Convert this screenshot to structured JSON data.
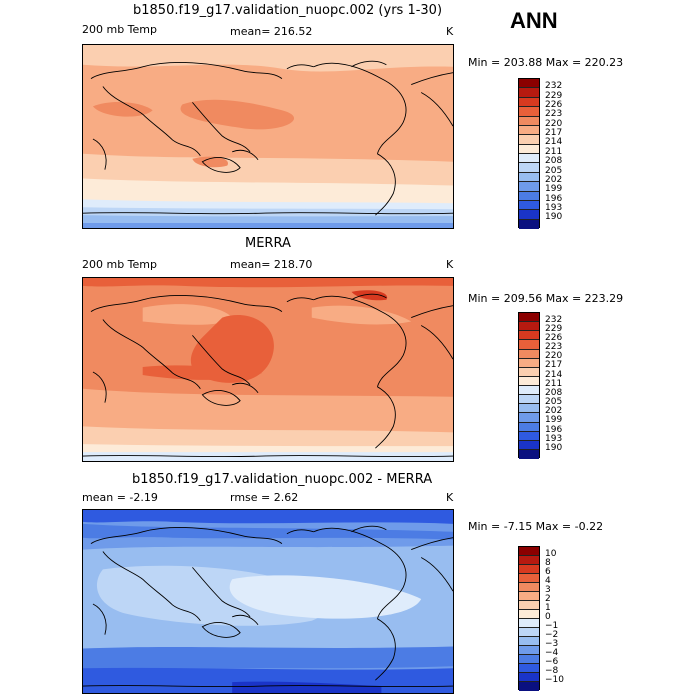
{
  "season": "ANN",
  "panels": [
    {
      "title": "b1850.f19_g17.validation_nuopc.002 (yrs 1-30)",
      "left_label": "200 mb Temp",
      "center_label": "mean= 216.52",
      "right_label": "K",
      "minmax": "Min = 203.88 Max = 220.23",
      "colorbar_labels": [
        "232",
        "229",
        "226",
        "223",
        "220",
        "217",
        "214",
        "211",
        "208",
        "205",
        "202",
        "199",
        "196",
        "193",
        "190"
      ]
    },
    {
      "title": "MERRA",
      "left_label": "200 mb Temp",
      "center_label": "mean= 218.70",
      "right_label": "K",
      "minmax": "Min = 209.56 Max = 223.29",
      "colorbar_labels": [
        "232",
        "229",
        "226",
        "223",
        "220",
        "217",
        "214",
        "211",
        "208",
        "205",
        "202",
        "199",
        "196",
        "193",
        "190"
      ]
    },
    {
      "title": "b1850.f19_g17.validation_nuopc.002 - MERRA",
      "left_label": "mean =   -2.19",
      "center_label": "rmse =    2.62",
      "right_label": "K",
      "minmax": "Min =  -7.15 Max =  -0.22",
      "colorbar_labels": [
        "10",
        "8",
        "6",
        "4",
        "3",
        "2",
        "1",
        "0",
        "−1",
        "−2",
        "−3",
        "−4",
        "−6",
        "−8",
        "−10"
      ]
    }
  ],
  "colors": {
    "scale16": [
      "#8b0000",
      "#b61a10",
      "#d73a20",
      "#e8603a",
      "#f08a60",
      "#f8ac84",
      "#fbcfb0",
      "#fdebd8",
      "#dfecfb",
      "#bdd6f6",
      "#98bdf0",
      "#6f9bea",
      "#4c7ce4",
      "#2f5ae0",
      "#1a34c8",
      "#0a1080"
    ],
    "land": "#000000"
  }
}
